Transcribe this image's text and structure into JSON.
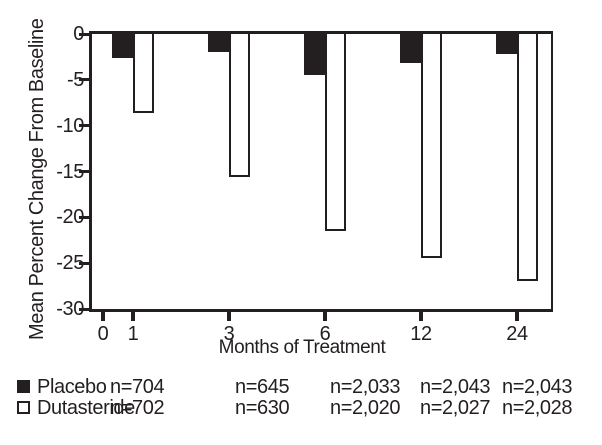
{
  "figure": {
    "background": "#ffffff",
    "ink_color": "#231f20"
  },
  "chart_data": {
    "type": "bar",
    "title": "",
    "xlabel": "Months of Treatment",
    "ylabel": "Mean Percent Change From Baseline",
    "categories": [
      "1",
      "3",
      "6",
      "12",
      "24"
    ],
    "x_tick_labels": [
      "0",
      "1",
      "3",
      "6",
      "12",
      "24"
    ],
    "y_tick_labels": [
      "0",
      "-5",
      "-10",
      "-15",
      "-20",
      "-25",
      "-30"
    ],
    "ylim": [
      -30,
      0
    ],
    "grid": false,
    "legend_position": "bottom-left",
    "series": [
      {
        "name": "Placebo",
        "fill": "#231f20",
        "values": [
          -2.6,
          -2.0,
          -4.5,
          -3.2,
          -2.2
        ],
        "n_labels": [
          "n=704",
          "n=645",
          "n=2,033",
          "n=2,043",
          "n=2,043"
        ]
      },
      {
        "name": "Dutasteride",
        "fill": "#ffffff",
        "values": [
          -8.6,
          -15.6,
          -21.5,
          -24.4,
          -27.0
        ],
        "n_labels": [
          "n=702",
          "n=630",
          "n=2,020",
          "n=2,027",
          "n=2,028"
        ]
      }
    ]
  }
}
